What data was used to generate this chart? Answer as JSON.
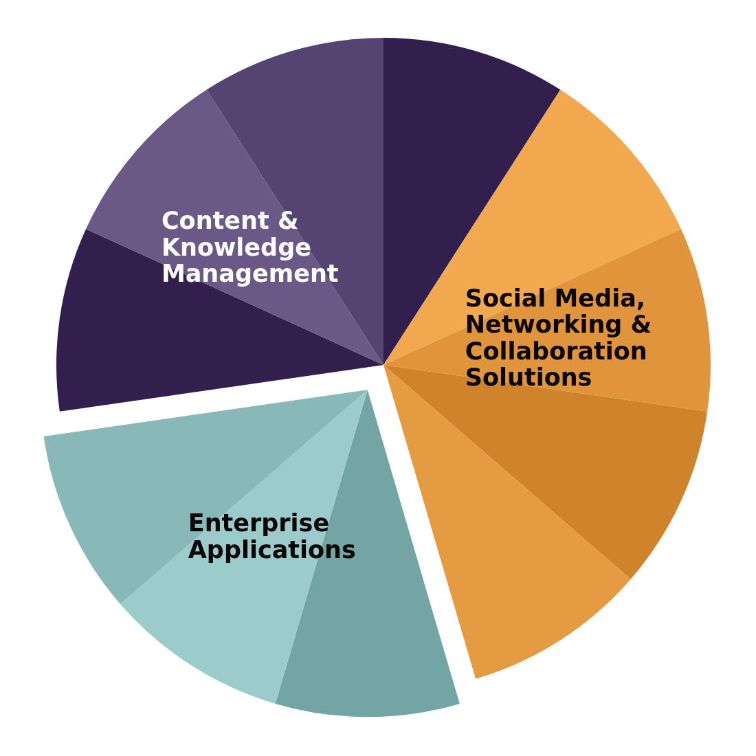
{
  "chart_data": {
    "type": "pie",
    "categories": [
      null,
      null,
      "Social Media, Networking & Collaboration Solutions",
      null,
      null,
      null,
      "Enterprise Applications",
      null,
      null,
      "Content & Knowledge Management",
      null
    ],
    "values": [
      9.09,
      9.09,
      9.09,
      9.09,
      9.09,
      9.09,
      9.09,
      9.09,
      9.09,
      9.09,
      9.09
    ],
    "colors": [
      "#321f4e",
      "#f2a84f",
      "#e0943b",
      "#cf832b",
      "#e59b42",
      "#73a5a4",
      "#9ccbcb",
      "#88b8b7",
      "#321f4e",
      "#6a5886",
      "#554372"
    ],
    "legend": false
  }
}
